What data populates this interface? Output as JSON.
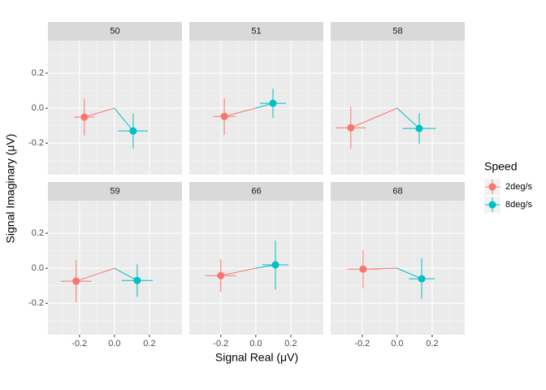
{
  "chart_data": {
    "type": "scatter",
    "xlabel": "Signal Real (μV)",
    "ylabel": "Signal Imaginary (μV)",
    "legend_title": "Speed",
    "xlim": [
      -0.38,
      0.386
    ],
    "ylim": [
      -0.38,
      0.386
    ],
    "xticks": [
      -0.2,
      {
        "value": 0,
        "label": "0.0"
      },
      0.2
    ],
    "yticks": [
      -0.2,
      {
        "value": 0,
        "label": "0.0"
      },
      0.2
    ],
    "grid": true,
    "series": [
      {
        "name": "2deg/s",
        "color": "#F8766D"
      },
      {
        "name": "8deg/s",
        "color": "#00BFC4"
      }
    ],
    "facets": [
      {
        "title": "50",
        "series": [
          {
            "x": [
              -0.172
            ],
            "y": [
              -0.051
            ],
            "xerr": [
              0.058
            ],
            "yerr": [
              0.105
            ]
          },
          {
            "x": [
              0.107
            ],
            "y": [
              -0.13
            ],
            "xerr": [
              0.084
            ],
            "yerr": [
              0.1
            ]
          }
        ]
      },
      {
        "title": "51",
        "series": [
          {
            "x": [
              -0.18
            ],
            "y": [
              -0.047
            ],
            "xerr": [
              0.063
            ],
            "yerr": [
              0.105
            ]
          },
          {
            "x": [
              0.098
            ],
            "y": [
              0.028
            ],
            "xerr": [
              0.074
            ],
            "yerr": [
              0.084
            ]
          }
        ]
      },
      {
        "title": "58",
        "series": [
          {
            "x": [
              -0.265
            ],
            "y": [
              -0.112
            ],
            "xerr": [
              0.086
            ],
            "yerr": [
              0.12
            ]
          },
          {
            "x": [
              0.126
            ],
            "y": [
              -0.116
            ],
            "xerr": [
              0.095
            ],
            "yerr": [
              0.088
            ]
          }
        ]
      },
      {
        "title": "59",
        "series": [
          {
            "x": [
              -0.219
            ],
            "y": [
              -0.074
            ],
            "xerr": [
              0.088
            ],
            "yerr": [
              0.12
            ]
          },
          {
            "x": [
              0.13
            ],
            "y": [
              -0.07
            ],
            "xerr": [
              0.088
            ],
            "yerr": [
              0.093
            ]
          }
        ]
      },
      {
        "title": "66",
        "series": [
          {
            "x": [
              -0.2
            ],
            "y": [
              -0.042
            ],
            "xerr": [
              0.088
            ],
            "yerr": [
              0.093
            ]
          },
          {
            "x": [
              0.112
            ],
            "y": [
              0.019
            ],
            "xerr": [
              0.074
            ],
            "yerr": [
              0.14
            ]
          }
        ]
      },
      {
        "title": "68",
        "series": [
          {
            "x": [
              -0.195
            ],
            "y": [
              -0.005
            ],
            "xerr": [
              0.09
            ],
            "yerr": [
              0.11
            ]
          },
          {
            "x": [
              0.14
            ],
            "y": [
              -0.06
            ],
            "xerr": [
              0.074
            ],
            "yerr": [
              0.116
            ]
          }
        ]
      }
    ]
  }
}
